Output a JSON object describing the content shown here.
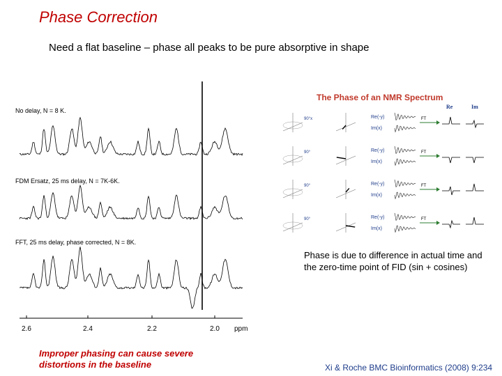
{
  "slide": {
    "title": "Phase Correction",
    "subtitle": "Need a flat baseline – phase all peaks to be pure absorptive in shape",
    "phase_note": "Phase is due to difference in actual time and the zero-time point of FID (sin + cosines)",
    "warning": "Improper phasing can cause severe distortions in the baseline",
    "citation": "Xi & Roche BMC Bioinformatics (2008) 9:234"
  },
  "spectra_figure": {
    "traces": [
      "No delay, N = 8 K.",
      "FDM Ersatz, 25 ms delay, N = 7K-6K.",
      "FFT, 25 ms delay, phase corrected, N = 8K."
    ],
    "axis": {
      "ticks": [
        "2.6",
        "2.4",
        "2.2",
        "2.0"
      ],
      "unit": "ppm"
    }
  },
  "nmr_figure": {
    "title": "The Phase of an NMR Spectrum",
    "col_re": "Re",
    "col_im": "Im",
    "rows": [
      {
        "angle": "90°x",
        "re": "Re(-y)",
        "im": "Im(x)",
        "ft": "FT"
      },
      {
        "angle": "90°",
        "re": "Re(-y)",
        "im": "Im(x)",
        "ft": "FT"
      },
      {
        "angle": "90°",
        "re": "Re(-y)",
        "im": "Im(x)",
        "ft": "FT"
      },
      {
        "angle": "90°",
        "re": "Re(-y)",
        "im": "Im(x)",
        "ft": "FT"
      }
    ]
  },
  "colors": {
    "title": "#c00000",
    "nmr_title": "#c0392b",
    "citation": "#1f3d8a",
    "arrow": "#2e7d32"
  }
}
